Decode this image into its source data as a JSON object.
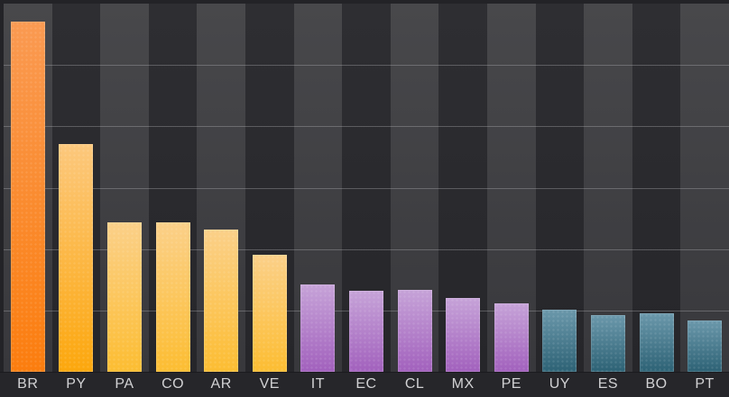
{
  "chart_data": {
    "type": "bar",
    "title": "",
    "xlabel": "",
    "ylabel": "",
    "legend": "none",
    "grid": "horizontal",
    "y_tick_labels_visible": false,
    "ylim": [
      0,
      6
    ],
    "value_unit": "grid-intervals (no numeric axis labels shown in the image)",
    "categories": [
      "BR",
      "PY",
      "PA",
      "CO",
      "AR",
      "VE",
      "IT",
      "EC",
      "CL",
      "MX",
      "PE",
      "UY",
      "ES",
      "BO",
      "PT"
    ],
    "values": [
      5.71,
      3.71,
      2.43,
      2.44,
      2.32,
      1.9,
      1.42,
      1.32,
      1.33,
      1.2,
      1.11,
      1.01,
      0.93,
      0.95,
      0.83
    ],
    "bar_groups": [
      {
        "name": "orange",
        "categories": [
          "BR"
        ],
        "color_top": "#fa9a52",
        "color_bottom": "#fb7d0e"
      },
      {
        "name": "light-orange",
        "categories": [
          "PY"
        ],
        "color_top": "#fcc87d",
        "color_bottom": "#fca70d"
      },
      {
        "name": "yellow",
        "categories": [
          "PA",
          "CO",
          "AR",
          "VE"
        ],
        "color_top": "#fbd089",
        "color_bottom": "#fcbd32"
      },
      {
        "name": "purple",
        "categories": [
          "IT",
          "EC",
          "CL",
          "MX",
          "PE"
        ],
        "color_top": "#c6a3d8",
        "color_bottom": "#a261bd"
      },
      {
        "name": "teal",
        "categories": [
          "UY",
          "ES",
          "BO",
          "PT"
        ],
        "color_top": "#6b98ab",
        "color_bottom": "#2d6275"
      }
    ],
    "gridline_count": 5
  },
  "theme": {
    "page_bg": "#232327",
    "band_light_top": "#48484b",
    "band_light_bottom": "#38383c",
    "band_dark_top": "#2e2e32",
    "band_dark_bottom": "#26262a",
    "gridline": "rgba(205,205,210,0.30)",
    "axis_bg": "#26262a",
    "axis_label_color": "#d2d2d4"
  }
}
